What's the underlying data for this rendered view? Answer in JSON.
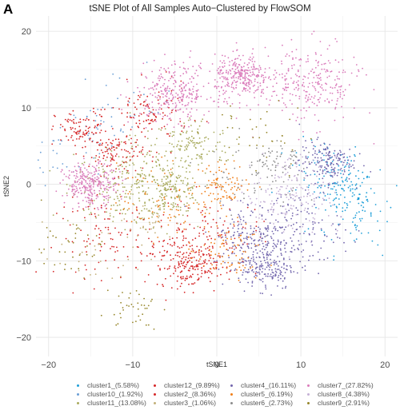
{
  "panel_label": "A",
  "chart_data": {
    "type": "scatter",
    "title": "tSNE Plot of All Samples Auto−Clustered by FlowSOM",
    "xlabel": "tSNE1",
    "ylabel": "tSNE2",
    "xlim": [
      -21.5,
      21.5
    ],
    "ylim": [
      -22.5,
      22
    ],
    "x_ticks": [
      -20,
      -10,
      0,
      10,
      20
    ],
    "y_ticks": [
      -20,
      -10,
      0,
      10,
      20
    ],
    "x_tick_labels": [
      "−20",
      "−10",
      "0",
      "10",
      "20"
    ],
    "y_tick_labels": [
      "−20",
      "−10",
      "0",
      "10",
      "20"
    ],
    "grid": true,
    "legend_position": "bottom",
    "series": [
      {
        "name": "cluster1_(5.58%)",
        "color": "#1f9fd8",
        "centers": [
          [
            15.5,
            -1
          ],
          [
            13,
            2
          ],
          [
            17,
            -4
          ]
        ]
      },
      {
        "name": "cluster10_(1.92%)",
        "color": "#6b9fd6",
        "centers": [
          [
            -19,
            4
          ],
          [
            -11,
            10
          ],
          [
            -14,
            7
          ]
        ]
      },
      {
        "name": "cluster11_(13.08%)",
        "color": "#a9ab5e",
        "centers": [
          [
            -9,
            1
          ],
          [
            -5,
            -1
          ],
          [
            -3,
            5
          ],
          [
            -12,
            -1
          ]
        ]
      },
      {
        "name": "cluster12_(9.89%)",
        "color": "#d62728",
        "centers": [
          [
            -16,
            7
          ],
          [
            -5,
            -9
          ],
          [
            -13,
            -7
          ],
          [
            -12,
            4
          ]
        ]
      },
      {
        "name": "cluster2_(8.36%)",
        "color": "#d62728",
        "centers": [
          [
            -8,
            9
          ],
          [
            -1,
            -7
          ],
          [
            -3,
            -11
          ]
        ]
      },
      {
        "name": "cluster3_(1.06%)",
        "color": "#c3b07a",
        "centers": [
          [
            -13,
            -9
          ],
          [
            -8,
            -5
          ]
        ]
      },
      {
        "name": "cluster4_(16.11%)",
        "color": "#7266ad",
        "centers": [
          [
            6,
            -11
          ],
          [
            4,
            -7
          ],
          [
            9,
            -6
          ],
          [
            13,
            3
          ]
        ]
      },
      {
        "name": "cluster5_(6.19%)",
        "color": "#f07e18",
        "centers": [
          [
            1,
            -9
          ],
          [
            -6,
            -2
          ],
          [
            1,
            0
          ]
        ]
      },
      {
        "name": "cluster6_(2.73%)",
        "color": "#8c8c8c",
        "centers": [
          [
            4,
            1
          ],
          [
            7,
            3
          ]
        ]
      },
      {
        "name": "cluster7_(27.82%)",
        "color": "#da7cbb",
        "centers": [
          [
            3,
            14
          ],
          [
            -5,
            12
          ],
          [
            11,
            13
          ],
          [
            -15,
            0
          ]
        ]
      },
      {
        "name": "cluster8_(4.38%)",
        "color": "#c5b1d6",
        "centers": [
          [
            10,
            0
          ],
          [
            8,
            -2
          ]
        ]
      },
      {
        "name": "cluster9_(2.91%)",
        "color": "#96862a",
        "centers": [
          [
            5,
            6
          ],
          [
            -10,
            -16
          ],
          [
            -18,
            -8
          ]
        ]
      }
    ]
  }
}
